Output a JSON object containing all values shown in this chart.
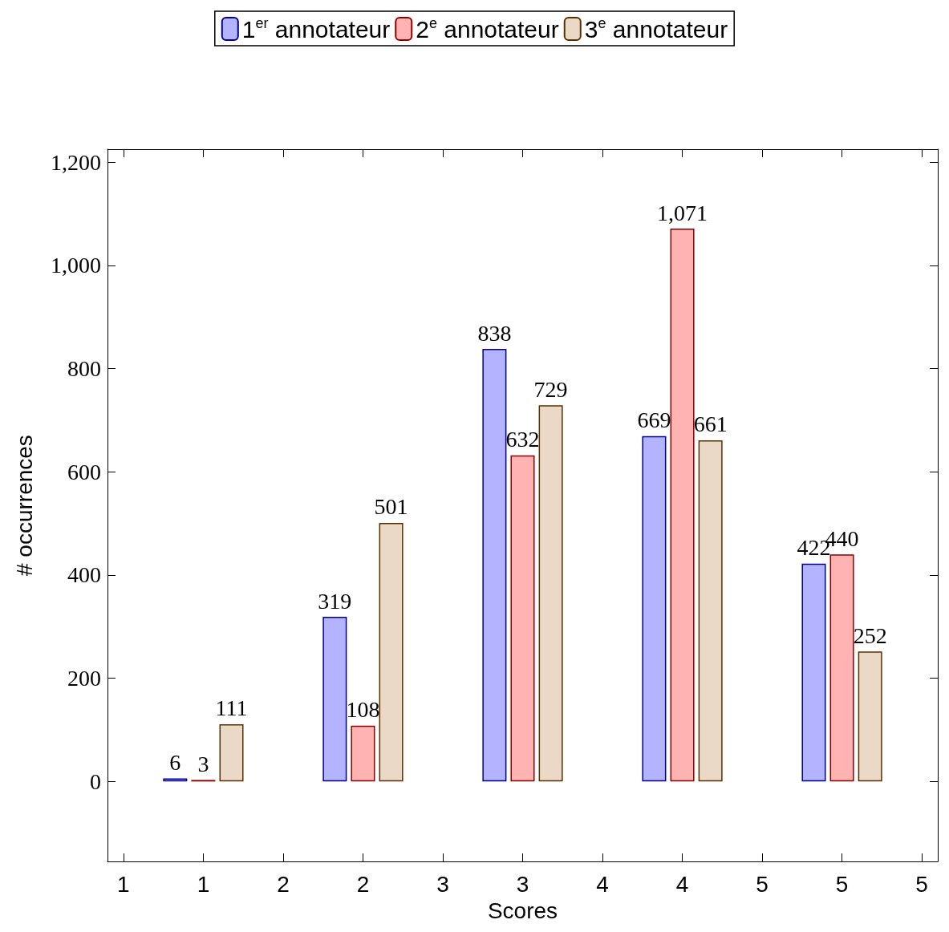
{
  "chart_data": {
    "type": "bar",
    "xlabel": "Scores",
    "ylabel": "# occurrences",
    "legend": "top",
    "grid": false,
    "xlim": [
      0.4,
      5.6
    ],
    "xticks": [
      {
        "value": 0.5,
        "label": "1"
      },
      {
        "value": 1,
        "label": "1"
      },
      {
        "value": 1.5,
        "label": "2"
      },
      {
        "value": 2,
        "label": "2"
      },
      {
        "value": 2.5,
        "label": "3"
      },
      {
        "value": 3,
        "label": "3"
      },
      {
        "value": 3.5,
        "label": "4"
      },
      {
        "value": 4,
        "label": "4"
      },
      {
        "value": 4.5,
        "label": "5"
      },
      {
        "value": 5,
        "label": "5"
      },
      {
        "value": 5.5,
        "label": "5"
      }
    ],
    "ylim": [
      -155,
      1225
    ],
    "yticks": [
      0,
      200,
      400,
      600,
      800,
      {
        "value": 1000,
        "label": "1,000"
      },
      {
        "value": 1200,
        "label": "1,200"
      }
    ],
    "series": [
      {
        "name": "1$^{er}$ annotateur",
        "color": "#b3b3ff",
        "x": [
          1,
          2,
          3,
          4,
          5
        ],
        "values": [
          6,
          319,
          838,
          669,
          422
        ],
        "value_labels": [
          "6",
          "319",
          "838",
          "669",
          "422"
        ]
      },
      {
        "name": "2$^{e}$ annotateur",
        "color": "#ffb3b3",
        "x": [
          1,
          2,
          3,
          4,
          5
        ],
        "values": [
          3,
          108,
          632,
          1071,
          440
        ],
        "value_labels": [
          "3",
          "108",
          "632",
          "1,071",
          "440"
        ]
      },
      {
        "name": "3$^{e}$ annotateur",
        "color": "#ead9c6",
        "x": [
          1,
          2,
          3,
          4,
          5
        ],
        "values": [
          111,
          501,
          729,
          661,
          252
        ],
        "value_labels": [
          "111",
          "501",
          "729",
          "661",
          "252"
        ]
      }
    ]
  }
}
